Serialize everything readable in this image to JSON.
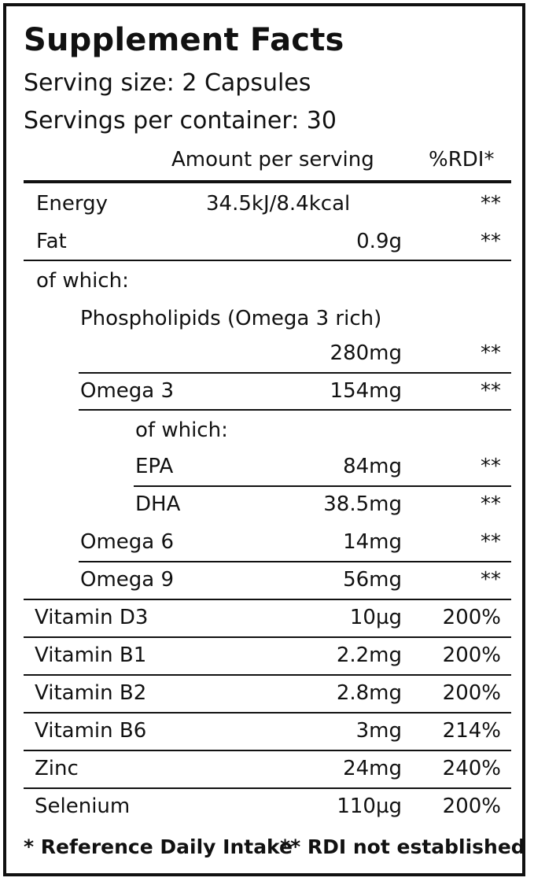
{
  "title": "Supplement Facts",
  "serving_size": "Serving size: 2 Capsules",
  "servings_per_container": "Servings per container: 30",
  "header": {
    "amount": "Amount per serving",
    "rdi": "%RDI*"
  },
  "rows": [
    {
      "label": "Energy",
      "amount": "34.5kJ/8.4kcal",
      "rdi": "**"
    },
    {
      "label": "Fat",
      "amount": "0.9g",
      "rdi": "**"
    },
    {
      "label": "of which:",
      "amount": "",
      "rdi": ""
    },
    {
      "label": "Phospholipids (Omega 3 rich)",
      "amount": "",
      "rdi": ""
    },
    {
      "label": "",
      "amount": "280mg",
      "rdi": "**"
    },
    {
      "label": "Omega 3",
      "amount": "154mg",
      "rdi": "**"
    },
    {
      "label": "of which:",
      "amount": "",
      "rdi": ""
    },
    {
      "label": "EPA",
      "amount": "84mg",
      "rdi": "**"
    },
    {
      "label": "DHA",
      "amount": "38.5mg",
      "rdi": "**"
    },
    {
      "label": "Omega 6",
      "amount": "14mg",
      "rdi": "**"
    },
    {
      "label": "Omega 9",
      "amount": "56mg",
      "rdi": "**"
    },
    {
      "label": "Vitamin D3",
      "amount": "10µg",
      "rdi": "200%"
    },
    {
      "label": "Vitamin B1",
      "amount": "2.2mg",
      "rdi": "200%"
    },
    {
      "label": "Vitamin B2",
      "amount": "2.8mg",
      "rdi": "200%"
    },
    {
      "label": "Vitamin B6",
      "amount": "3mg",
      "rdi": "214%"
    },
    {
      "label": "Zinc",
      "amount": "24mg",
      "rdi": "240%"
    },
    {
      "label": "Selenium",
      "amount": "110µg",
      "rdi": "200%"
    }
  ],
  "footnotes": {
    "rdi": "* Reference Daily Intake",
    "not_established": "** RDI not established"
  }
}
